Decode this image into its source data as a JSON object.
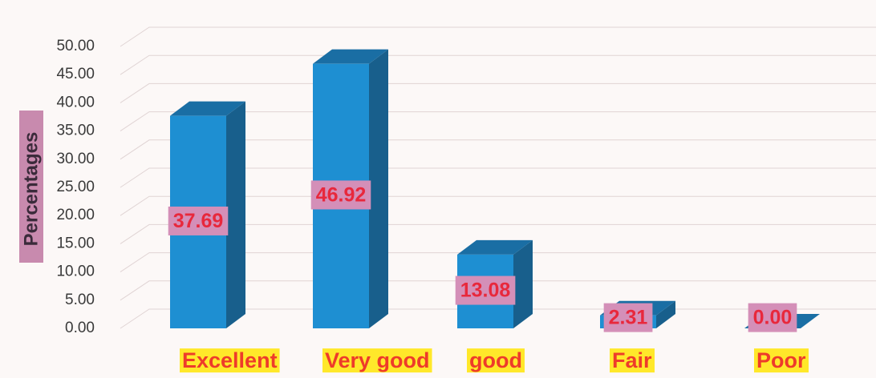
{
  "chart_data": {
    "type": "bar3d",
    "y_label": "Percentages",
    "categories": [
      "Excellent",
      "Very good",
      "good",
      "Fair",
      "Poor"
    ],
    "values": [
      37.69,
      46.92,
      13.08,
      2.31,
      0
    ],
    "value_labels": [
      "37.69",
      "46.92",
      "13.08",
      "2.31",
      "0.00"
    ],
    "color": "#1e8fd2",
    "ylim": [
      0,
      50
    ],
    "yticks": [
      {
        "value": 0,
        "label": "0.00"
      },
      {
        "value": 5,
        "label": "5.00"
      },
      {
        "value": 10,
        "label": "10.00"
      },
      {
        "value": 15,
        "label": "15.00"
      },
      {
        "value": 20,
        "label": "20.00"
      },
      {
        "value": 25,
        "label": "25.00"
      },
      {
        "value": 30,
        "label": "30.00"
      },
      {
        "value": 35,
        "label": "35.00"
      },
      {
        "value": 40,
        "label": "40.00"
      },
      {
        "value": 45,
        "label": "45.00"
      },
      {
        "value": 50,
        "label": "50.00"
      }
    ],
    "grid": true
  }
}
